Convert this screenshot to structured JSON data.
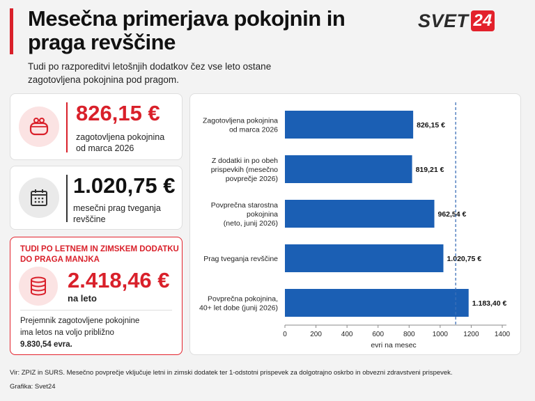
{
  "header": {
    "title": "Mesečna primerjava pokojnin in praga revščine",
    "subtitle": "Tudi po razporeditvi letošnjih dodatkov čez vse leto ostane zagotovljena pokojnina pod pragom.",
    "logo_text": "SVET",
    "logo_number": "24"
  },
  "cards": {
    "pension": {
      "value": "826,15 €",
      "label": "zagotovljena pokojnina od marca 2026",
      "icon": "purse-icon"
    },
    "threshold": {
      "value": "1.020,75 €",
      "label": "mesečni prag tveganja revščine",
      "icon": "calendar-icon"
    },
    "annual": {
      "heading": "TUDI PO LETNEM IN ZIMSKEM DODATKU DO PRAGA MANJKA",
      "value": "2.418,46 €",
      "unit": "na leto",
      "note": "Prejemnik zagotovljene pokojnine ima letos na voljo približno",
      "note_value": "9.830,54 evra.",
      "icon": "coins-icon"
    }
  },
  "chart_data": {
    "type": "bar",
    "orientation": "horizontal",
    "categories": [
      [
        "Zagotovljena pokojnina",
        "od marca 2026"
      ],
      [
        "Z dodatki in po obeh",
        "prispevkih (mesečno",
        "povprečje 2026)"
      ],
      [
        "Povprečna starostna",
        "pokojnina",
        "(neto, junij 2026)"
      ],
      [
        "Prag tveganja revščine"
      ],
      [
        "Povprečna pokojnina,",
        "40+ let dobe (junij 2026)"
      ]
    ],
    "values": [
      826.15,
      819.21,
      962.54,
      1020.75,
      1183.4
    ],
    "data_labels": [
      "826,15 €",
      "819,21 €",
      "962,54 €",
      "1.020,75 €",
      "1.183,40 €"
    ],
    "xlabel": "evri na mesec",
    "ylabel": "",
    "xlim": [
      0,
      1400
    ],
    "xticks": [
      0,
      200,
      400,
      600,
      800,
      1000,
      1200,
      1400
    ],
    "reference_line": 1100,
    "bar_color": "#1b5fb4",
    "grid": false
  },
  "footer": {
    "source": "Vir: ZPIZ in SURS. Mesečno povprečje vključuje letni in zimski dodatek ter 1-odstotni prispevek za dolgotrajno oskrbo in obvezni zdravstveni prispevek.",
    "credit": "Grafika: Svet24"
  },
  "colors": {
    "accent": "#d9202a",
    "bar": "#1b5fb4",
    "reference": "#3b6fb8"
  }
}
